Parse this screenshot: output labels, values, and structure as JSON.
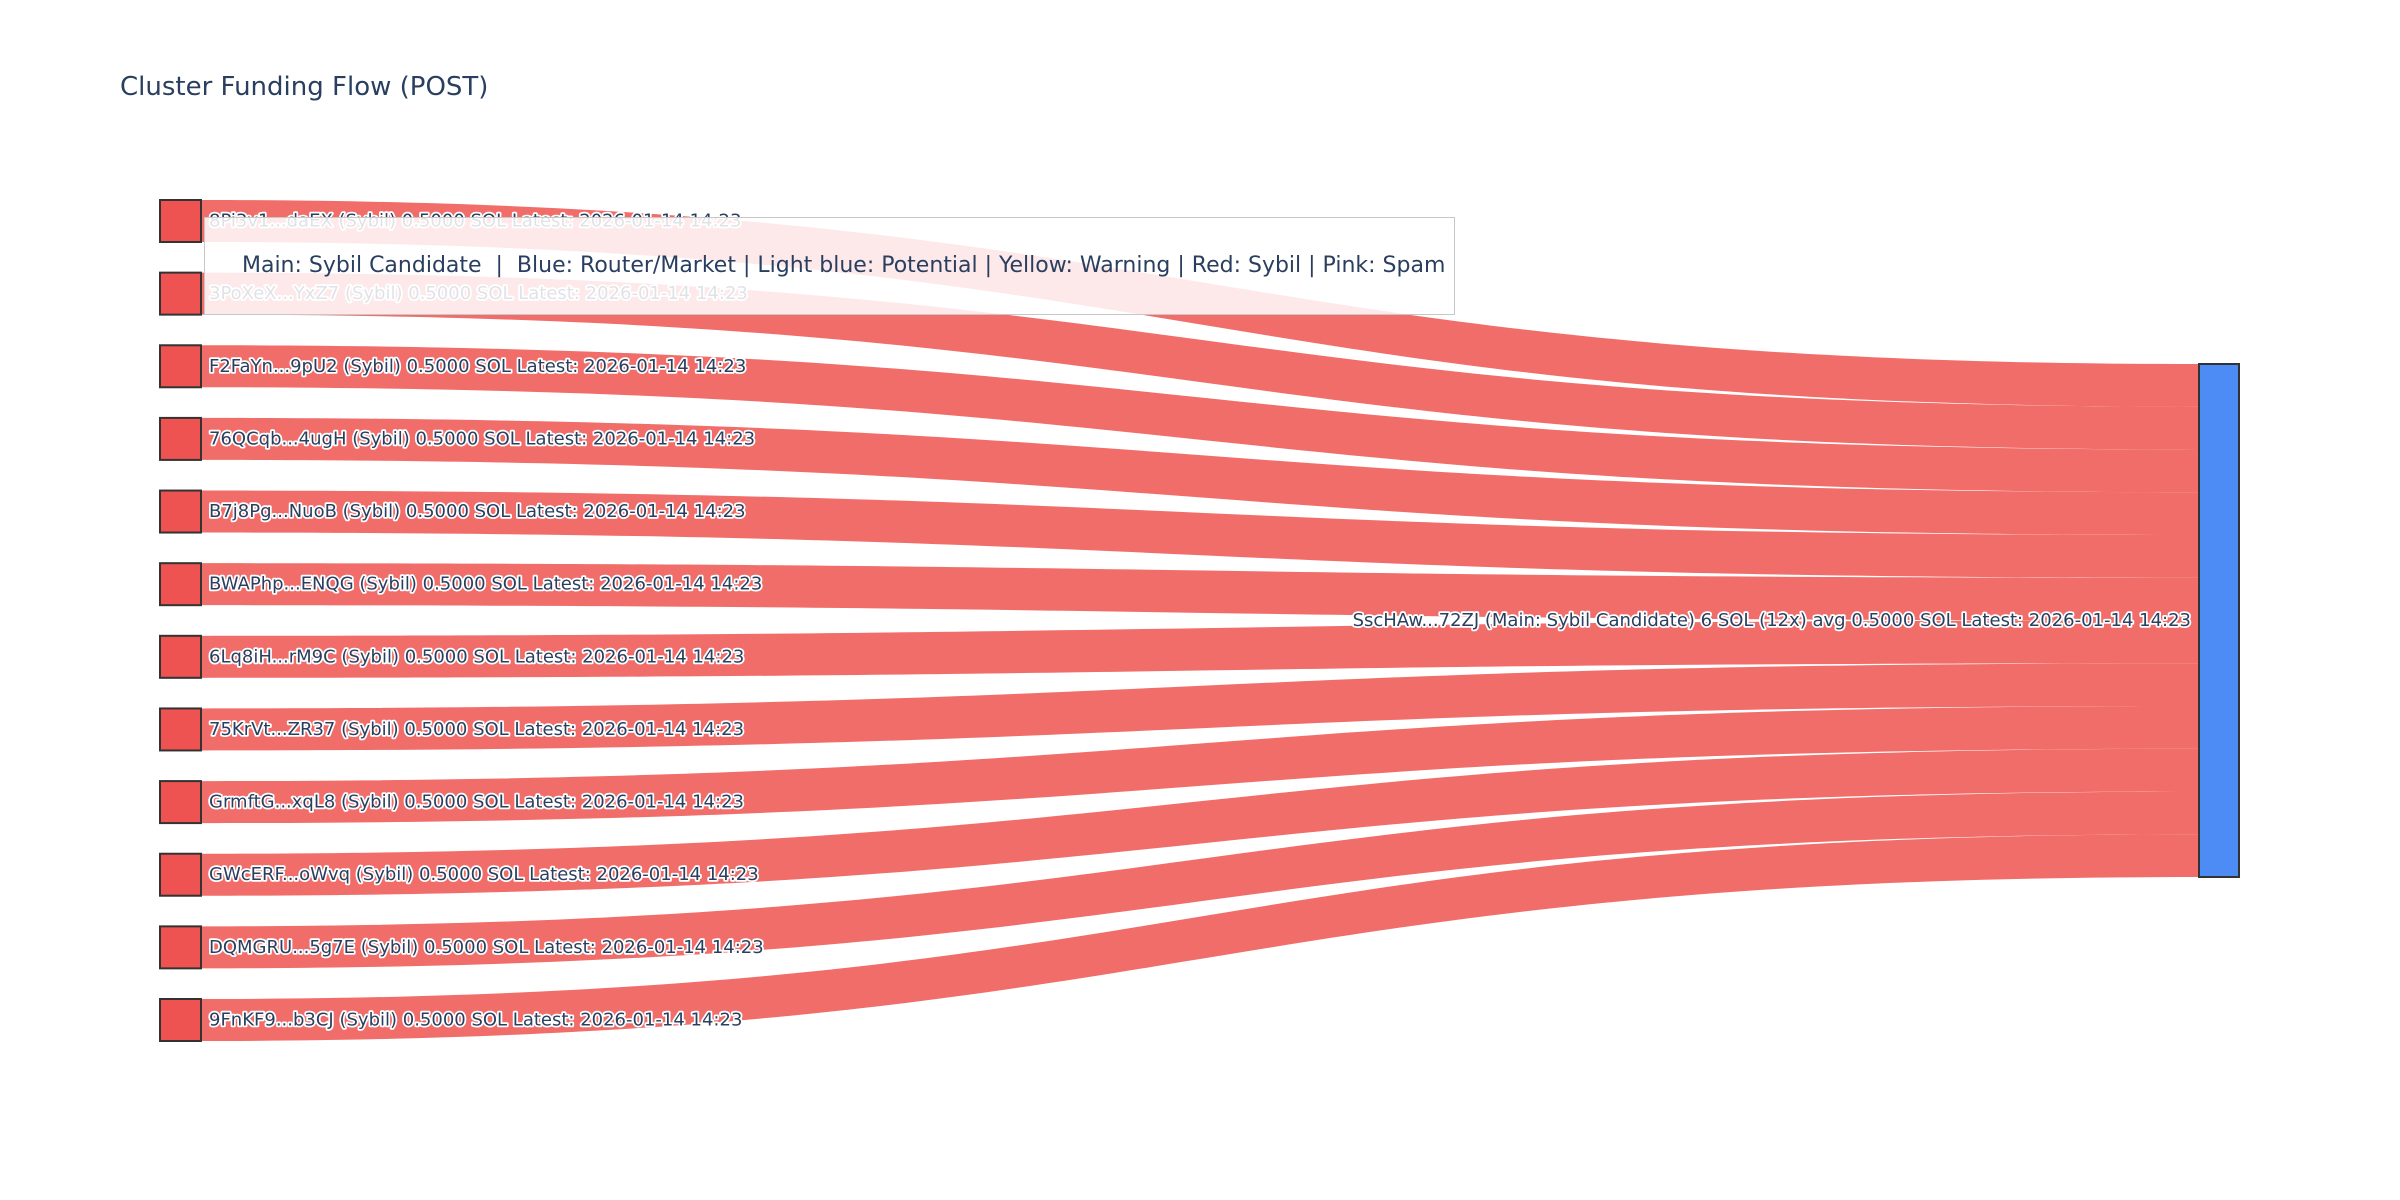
{
  "title": "Cluster Funding Flow (POST)",
  "legend": {
    "text": "Main: Sybil Candidate  |  Blue: Router/Market | Light blue: Potential | Yellow: Warning | Red: Sybil | Pink: Spam"
  },
  "chart_data": {
    "type": "sankey",
    "title": "Cluster Funding Flow (POST)",
    "unit": "SOL",
    "source_nodes": [
      {
        "label": "8Pi3v1...daEX (Sybil) 0.5000 SOL Latest: 2026-01-14 14:23",
        "value": 0.5
      },
      {
        "label": "3PoXeX...YxZ7 (Sybil) 0.5000 SOL Latest: 2026-01-14 14:23",
        "value": 0.5
      },
      {
        "label": "F2FaYn...9pU2 (Sybil) 0.5000 SOL Latest: 2026-01-14 14:23",
        "value": 0.5
      },
      {
        "label": "76QCqb...4ugH (Sybil) 0.5000 SOL Latest: 2026-01-14 14:23",
        "value": 0.5
      },
      {
        "label": "B7j8Pg...NuoB (Sybil) 0.5000 SOL Latest: 2026-01-14 14:23",
        "value": 0.5
      },
      {
        "label": "BWAPhp...ENQG (Sybil) 0.5000 SOL Latest: 2026-01-14 14:23",
        "value": 0.5
      },
      {
        "label": "6Lq8iH...rM9C (Sybil) 0.5000 SOL Latest: 2026-01-14 14:23",
        "value": 0.5
      },
      {
        "label": "75KrVt...ZR37 (Sybil) 0.5000 SOL Latest: 2026-01-14 14:23",
        "value": 0.5
      },
      {
        "label": "GrmftG...xqL8 (Sybil) 0.5000 SOL Latest: 2026-01-14 14:23",
        "value": 0.5
      },
      {
        "label": "GWcERF...oWvq (Sybil) 0.5000 SOL Latest: 2026-01-14 14:23",
        "value": 0.5
      },
      {
        "label": "DQMGRU...5g7E (Sybil) 0.5000 SOL Latest: 2026-01-14 14:23",
        "value": 0.5
      },
      {
        "label": "9FnKF9...b3CJ (Sybil) 0.5000 SOL Latest: 2026-01-14 14:23",
        "value": 0.5
      }
    ],
    "target_node": {
      "label": "SscHAw...72ZJ (Main: Sybil Candidate) 6 SOL (12x) avg 0.5000 SOL Latest: 2026-01-14 14:23",
      "total_sol": 6,
      "tx_count": 12,
      "avg_sol": 0.5
    },
    "links": [
      {
        "source": 0,
        "target": "main",
        "value": 0.5
      },
      {
        "source": 1,
        "target": "main",
        "value": 0.5
      },
      {
        "source": 2,
        "target": "main",
        "value": 0.5
      },
      {
        "source": 3,
        "target": "main",
        "value": 0.5
      },
      {
        "source": 4,
        "target": "main",
        "value": 0.5
      },
      {
        "source": 5,
        "target": "main",
        "value": 0.5
      },
      {
        "source": 6,
        "target": "main",
        "value": 0.5
      },
      {
        "source": 7,
        "target": "main",
        "value": 0.5
      },
      {
        "source": 8,
        "target": "main",
        "value": 0.5
      },
      {
        "source": 9,
        "target": "main",
        "value": 0.5
      },
      {
        "source": 10,
        "target": "main",
        "value": 0.5
      },
      {
        "source": 11,
        "target": "main",
        "value": 0.5
      }
    ],
    "colors": {
      "sybil_node": "#ee5351",
      "link": "rgba(238,83,80,0.85)",
      "main_node": "#4d8cf5",
      "node_border": "#333333",
      "label_text": "#2a3f5f",
      "title_text": "#2a3f5f"
    },
    "legend_note": "Main: Sybil Candidate  |  Blue: Router/Market | Light blue: Potential | Yellow: Warning | Red: Sybil | Pink: Spam"
  }
}
